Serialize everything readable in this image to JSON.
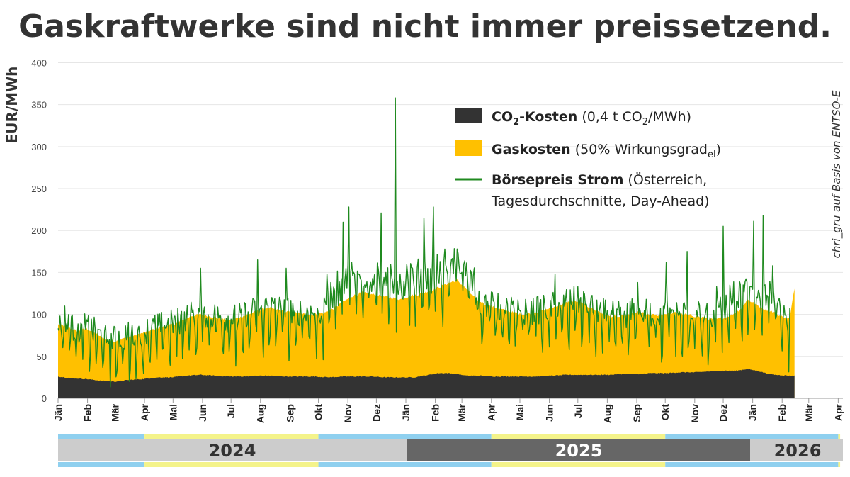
{
  "chart_data": {
    "type": "area",
    "title": "Gaskraftwerke sind nicht immer preissetzend.",
    "ylabel": "EUR/MWh",
    "ylim": [
      0,
      400
    ],
    "yticks": [
      "0",
      "50",
      "100",
      "150",
      "200",
      "250",
      "300",
      "350",
      "400"
    ],
    "month_labels": [
      "Jän",
      "Feb",
      "Mär",
      "Apr",
      "Mai",
      "Jun",
      "Jul",
      "Aug",
      "Sep",
      "Okt",
      "Nov",
      "Dez",
      "Jän",
      "Feb",
      "Mär",
      "Apr",
      "Mai",
      "Jun",
      "Jul",
      "Aug",
      "Sep",
      "Okt",
      "Nov",
      "Dez",
      "Jän",
      "Feb",
      "Mär",
      "Apr"
    ],
    "x_range": "Jän 2024 – Apr 2026 (daily)",
    "years": [
      "2024",
      "2025",
      "2026"
    ],
    "legend": {
      "co2_bold": "CO",
      "co2_sub": "2",
      "co2_bold2": "-Kosten",
      "co2_rest1": " (0,4 t CO",
      "co2_rest_sub": "2",
      "co2_rest2": "/MWh)",
      "gas_bold": "Gaskosten",
      "gas_rest": " (50% Wirkungsgrad",
      "gas_sub": "el",
      "gas_rest2": ")",
      "strom_bold": "Börsepreis Strom",
      "strom_rest": " (Österreich,",
      "strom_line2": "Tagesdurchschnitte, Day-Ahead)"
    },
    "source": "chri_gru auf Basis von ENTSO-E",
    "series": [
      {
        "name": "CO2-Kosten",
        "color": "#333333",
        "keypoints_day_value": [
          [
            0,
            26
          ],
          [
            15,
            24
          ],
          [
            30,
            23
          ],
          [
            45,
            21
          ],
          [
            60,
            20
          ],
          [
            75,
            22
          ],
          [
            90,
            23
          ],
          [
            105,
            25
          ],
          [
            120,
            25
          ],
          [
            135,
            27
          ],
          [
            150,
            28
          ],
          [
            165,
            27
          ],
          [
            180,
            26
          ],
          [
            195,
            26
          ],
          [
            210,
            27
          ],
          [
            225,
            27
          ],
          [
            240,
            26
          ],
          [
            255,
            26
          ],
          [
            270,
            26
          ],
          [
            285,
            25
          ],
          [
            300,
            26
          ],
          [
            315,
            26
          ],
          [
            330,
            26
          ],
          [
            345,
            25
          ],
          [
            360,
            25
          ],
          [
            375,
            25
          ],
          [
            390,
            28
          ],
          [
            400,
            30
          ],
          [
            410,
            30
          ],
          [
            420,
            29
          ],
          [
            430,
            27
          ],
          [
            445,
            27
          ],
          [
            460,
            26
          ],
          [
            475,
            26
          ],
          [
            490,
            26
          ],
          [
            505,
            26
          ],
          [
            520,
            27
          ],
          [
            535,
            28
          ],
          [
            550,
            28
          ],
          [
            565,
            28
          ],
          [
            580,
            28
          ],
          [
            595,
            29
          ],
          [
            610,
            29
          ],
          [
            625,
            30
          ],
          [
            640,
            30
          ],
          [
            655,
            31
          ],
          [
            670,
            31
          ],
          [
            685,
            32
          ],
          [
            700,
            33
          ],
          [
            715,
            33
          ],
          [
            725,
            35
          ],
          [
            735,
            33
          ],
          [
            745,
            30
          ],
          [
            755,
            28
          ],
          [
            770,
            27
          ]
        ]
      },
      {
        "name": "Gaskosten",
        "color": "#FFC000",
        "keypoints_day_value": [
          [
            0,
            88
          ],
          [
            10,
            85
          ],
          [
            20,
            80
          ],
          [
            30,
            83
          ],
          [
            40,
            77
          ],
          [
            50,
            70
          ],
          [
            60,
            68
          ],
          [
            70,
            72
          ],
          [
            80,
            75
          ],
          [
            90,
            78
          ],
          [
            100,
            82
          ],
          [
            110,
            85
          ],
          [
            120,
            88
          ],
          [
            130,
            92
          ],
          [
            140,
            98
          ],
          [
            150,
            100
          ],
          [
            160,
            98
          ],
          [
            170,
            95
          ],
          [
            180,
            93
          ],
          [
            190,
            96
          ],
          [
            200,
            100
          ],
          [
            210,
            104
          ],
          [
            220,
            108
          ],
          [
            230,
            106
          ],
          [
            240,
            103
          ],
          [
            250,
            102
          ],
          [
            260,
            100
          ],
          [
            270,
            100
          ],
          [
            280,
            102
          ],
          [
            290,
            107
          ],
          [
            300,
            115
          ],
          [
            310,
            122
          ],
          [
            320,
            126
          ],
          [
            330,
            124
          ],
          [
            340,
            122
          ],
          [
            350,
            120
          ],
          [
            360,
            118
          ],
          [
            370,
            122
          ],
          [
            380,
            124
          ],
          [
            390,
            128
          ],
          [
            400,
            132
          ],
          [
            410,
            137
          ],
          [
            420,
            141
          ],
          [
            430,
            130
          ],
          [
            440,
            118
          ],
          [
            450,
            112
          ],
          [
            460,
            108
          ],
          [
            470,
            105
          ],
          [
            480,
            102
          ],
          [
            490,
            100
          ],
          [
            500,
            102
          ],
          [
            510,
            105
          ],
          [
            520,
            108
          ],
          [
            530,
            112
          ],
          [
            540,
            116
          ],
          [
            550,
            114
          ],
          [
            560,
            108
          ],
          [
            570,
            103
          ],
          [
            580,
            98
          ],
          [
            590,
            97
          ],
          [
            600,
            99
          ],
          [
            610,
            103
          ],
          [
            620,
            100
          ],
          [
            630,
            99
          ],
          [
            640,
            101
          ],
          [
            650,
            102
          ],
          [
            660,
            100
          ],
          [
            670,
            98
          ],
          [
            680,
            96
          ],
          [
            690,
            94
          ],
          [
            700,
            96
          ],
          [
            710,
            100
          ],
          [
            720,
            108
          ],
          [
            725,
            118
          ],
          [
            730,
            115
          ],
          [
            740,
            108
          ],
          [
            750,
            104
          ],
          [
            760,
            98
          ],
          [
            770,
            95
          ],
          [
            775,
            132
          ]
        ]
      },
      {
        "name": "Börsepreis Strom",
        "color": "#1f8a1f",
        "generated": "daily values approximated from figure, seeded noise around gas cost with spikes",
        "spikes_day_value": [
          [
            7,
            110
          ],
          [
            150,
            155
          ],
          [
            210,
            165
          ],
          [
            240,
            155
          ],
          [
            300,
            210
          ],
          [
            306,
            228
          ],
          [
            340,
            221
          ],
          [
            355,
            358
          ],
          [
            385,
            215
          ],
          [
            395,
            228
          ],
          [
            420,
            178
          ],
          [
            523,
            148
          ],
          [
            610,
            138
          ],
          [
            640,
            162
          ],
          [
            662,
            175
          ],
          [
            700,
            205
          ],
          [
            732,
            211
          ],
          [
            742,
            218
          ],
          [
            752,
            158
          ],
          [
            770,
            108
          ]
        ]
      }
    ]
  }
}
